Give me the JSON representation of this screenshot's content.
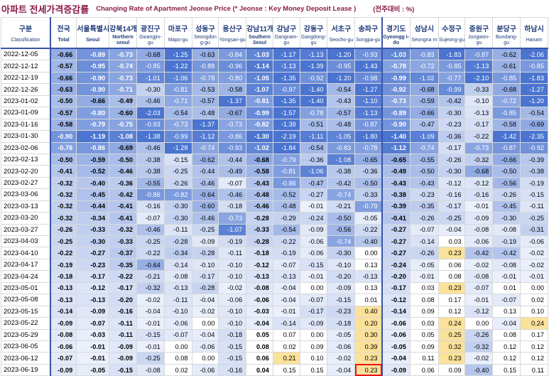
{
  "title_kr": "아파트 전세가격증감률",
  "title_en": "Changing Rate of Apartment Jeonse Price (* Jeonse : Key Money Deposit Lease )",
  "unit": "(전주대비 : %)",
  "columns": [
    {
      "kr": "구분",
      "en": "Classification"
    },
    {
      "kr": "전국",
      "en": "Total"
    },
    {
      "kr": "서울특별시",
      "en": "Seoul"
    },
    {
      "kr": "강북14개",
      "en": "Northern seoul"
    },
    {
      "kr": "광진구",
      "en": "Gwangjin-gu"
    },
    {
      "kr": "마포구",
      "en": "Mapo-gu"
    },
    {
      "kr": "성동구",
      "en": "Seongdon g-gu"
    },
    {
      "kr": "용산구",
      "en": "Yongsan-gu"
    },
    {
      "kr": "강남11개",
      "en": "Southern Seoul"
    },
    {
      "kr": "강남구",
      "en": "Gangnam-gu"
    },
    {
      "kr": "강동구",
      "en": "Gangdong-gu"
    },
    {
      "kr": "서초구",
      "en": "Seocho-gu"
    },
    {
      "kr": "송파구",
      "en": "Songpa-gu"
    },
    {
      "kr": "경기도",
      "en": "Gyeongg i-do"
    },
    {
      "kr": "성남시",
      "en": "Seongna m"
    },
    {
      "kr": "수정구",
      "en": "Sujeong-gu"
    },
    {
      "kr": "중원구",
      "en": "Jungwon-gu"
    },
    {
      "kr": "분당구",
      "en": "Bundang-gu"
    },
    {
      "kr": "하남시",
      "en": "Hanam"
    }
  ],
  "rows": [
    [
      "2022-12-05",
      "-0.66",
      "-0.89",
      "-0.73",
      "-0.68",
      "-1.25",
      "-0.63",
      "-0.84",
      "-1.03",
      "-1.17",
      "-1.13",
      "-1.20",
      "-0.93",
      "-1.03",
      "-0.83",
      "-1.83",
      "-0.87",
      "-0.62",
      "-2.06"
    ],
    [
      "2022-12-12",
      "-0.57",
      "-0.95",
      "-0.74",
      "-0.85",
      "-1.22",
      "-0.88",
      "-0.96",
      "-1.14",
      "-1.13",
      "-1.39",
      "-0.95",
      "-1.43",
      "-0.78",
      "-0.72",
      "-0.85",
      "-1.13",
      "-0.61",
      "-0.85"
    ],
    [
      "2022-12-19",
      "-0.66",
      "-0.90",
      "-0.73",
      "-1.01",
      "-1.06",
      "-0.78",
      "-0.80",
      "-1.05",
      "-1.35",
      "-0.92",
      "-1.20",
      "-0.98",
      "-0.99",
      "-1.02",
      "-0.77",
      "-2.10",
      "-0.85",
      "-1.83"
    ],
    [
      "2022-12-26",
      "-0.63",
      "-0.90",
      "-0.71",
      "-0.30",
      "-0.81",
      "-0.53",
      "-0.58",
      "-1.07",
      "-0.97",
      "-1.40",
      "-0.54",
      "-1.27",
      "-0.92",
      "-0.68",
      "-0.99",
      "-0.33",
      "-0.68",
      "-1.27"
    ],
    [
      "2023-01-02",
      "-0.50",
      "-0.66",
      "-0.49",
      "-0.46",
      "-0.71",
      "-0.57",
      "-1.37",
      "-0.81",
      "-1.35",
      "-1.40",
      "-0.43",
      "-1.10",
      "-0.73",
      "-0.59",
      "-0.42",
      "-0.10",
      "-0.72",
      "-1.20"
    ],
    [
      "2023-01-09",
      "-0.57",
      "-0.80",
      "-0.60",
      "-2.03",
      "-0.54",
      "-0.48",
      "-0.67",
      "-0.99",
      "-1.57",
      "-0.78",
      "-0.57",
      "-1.13",
      "-0.89",
      "-0.66",
      "-0.30",
      "-0.13",
      "-0.85",
      "-0.54"
    ],
    [
      "2023-01-16",
      "-0.58",
      "-0.79",
      "-0.75",
      "-0.93",
      "-0.73",
      "-1.37",
      "-0.73",
      "-0.82",
      "-1.39",
      "-0.51",
      "-0.48",
      "-0.87",
      "-0.90",
      "-0.47",
      "-0.23",
      "-0.17",
      "-0.58",
      "-0.69"
    ],
    [
      "2023-01-30",
      "-0.90",
      "-1.19",
      "-1.08",
      "-1.38",
      "-0.99",
      "-1.12",
      "-0.86",
      "-1.30",
      "-2.19",
      "-1.11",
      "-1.05",
      "-1.80",
      "-1.40",
      "-1.09",
      "-0.36",
      "-0.22",
      "-1.42",
      "-2.35"
    ],
    [
      "2023-02-06",
      "-0.76",
      "-0.86",
      "-0.69",
      "-0.46",
      "-1.28",
      "-0.74",
      "-0.93",
      "-1.02",
      "-1.84",
      "-0.54",
      "-0.83",
      "-0.78",
      "-1.12",
      "-0.74",
      "-0.17",
      "-0.73",
      "-0.87",
      "-0.92"
    ],
    [
      "2023-02-13",
      "-0.50",
      "-0.59",
      "-0.50",
      "-0.38",
      "-0.15",
      "-0.62",
      "-0.44",
      "-0.68",
      "-0.79",
      "-0.36",
      "-1.08",
      "-0.65",
      "-0.65",
      "-0.55",
      "-0.26",
      "-0.32",
      "-0.66",
      "-0.39"
    ],
    [
      "2023-02-20",
      "-0.41",
      "-0.52",
      "-0.46",
      "-0.38",
      "-0.25",
      "-0.44",
      "-0.49",
      "-0.58",
      "-0.81",
      "-1.06",
      "-0.38",
      "-0.36",
      "-0.49",
      "-0.50",
      "-0.30",
      "-0.68",
      "-0.50",
      "-0.38"
    ],
    [
      "2023-02-27",
      "-0.32",
      "-0.40",
      "-0.36",
      "-0.55",
      "-0.26",
      "-0.46",
      "-0.07",
      "-0.43",
      "-0.86",
      "-0.47",
      "-0.42",
      "-0.50",
      "-0.43",
      "-0.43",
      "-0.12",
      "-0.12",
      "-0.56",
      "-0.19"
    ],
    [
      "2023-03-06",
      "-0.32",
      "-0.45",
      "-0.42",
      "-0.86",
      "-0.82",
      "-0.64",
      "-0.46",
      "-0.48",
      "-0.52",
      "-0.27",
      "-0.74",
      "-0.33",
      "-0.38",
      "-0.23",
      "-0.16",
      "-0.16",
      "-0.26",
      "-0.15"
    ],
    [
      "2023-03-13",
      "-0.32",
      "-0.44",
      "-0.41",
      "-0.16",
      "-0.30",
      "-0.60",
      "-0.18",
      "-0.46",
      "-0.48",
      "-0.01",
      "-0.21",
      "-0.79",
      "-0.39",
      "-0.35",
      "-0.17",
      "-0.01",
      "-0.45",
      "-0.11"
    ],
    [
      "2023-03-20",
      "-0.32",
      "-0.34",
      "-0.41",
      "-0.07",
      "-0.30",
      "-0.46",
      "-0.73",
      "-0.28",
      "-0.29",
      "-0.24",
      "-0.50",
      "-0.05",
      "-0.41",
      "-0.26",
      "-0.25",
      "-0.09",
      "-0.30",
      "-0.25"
    ],
    [
      "2023-03-27",
      "-0.26",
      "-0.33",
      "-0.32",
      "-0.46",
      "-0.11",
      "-0.25",
      "-1.07",
      "-0.33",
      "-0.54",
      "-0.09",
      "-0.56",
      "-0.22",
      "-0.27",
      "-0.07",
      "-0.04",
      "-0.08",
      "-0.08",
      "-0.31"
    ],
    [
      "2023-04-03",
      "-0.25",
      "-0.30",
      "-0.33",
      "-0.25",
      "-0.28",
      "-0.09",
      "-0.19",
      "-0.28",
      "-0.22",
      "-0.06",
      "-0.74",
      "-0.40",
      "-0.27",
      "-0.14",
      "0.03",
      "-0.06",
      "-0.19",
      "-0.06"
    ],
    [
      "2023-04-10",
      "-0.22",
      "-0.27",
      "-0.37",
      "-0.22",
      "-0.34",
      "-0.28",
      "-0.11",
      "-0.18",
      "-0.19",
      "-0.06",
      "-0.30",
      "0.00",
      "-0.27",
      "-0.26",
      "0.23",
      "-0.42",
      "-0.42",
      "-0.02"
    ],
    [
      "2023-04-17",
      "-0.19",
      "-0.23",
      "-0.35",
      "-0.64",
      "-0.14",
      "-0.10",
      "-0.10",
      "-0.12",
      "-0.07",
      "-0.15",
      "-0.10",
      "0.13",
      "-0.24",
      "-0.05",
      "0.06",
      "-0.02",
      "-0.08",
      "-0.02"
    ],
    [
      "2023-04-24",
      "-0.18",
      "-0.17",
      "-0.22",
      "-0.21",
      "-0.08",
      "-0.17",
      "-0.10",
      "-0.13",
      "-0.13",
      "-0.01",
      "-0.20",
      "-0.13",
      "-0.20",
      "-0.01",
      "0.08",
      "-0.08",
      "-0.01",
      "-0.01"
    ],
    [
      "2023-05-01",
      "-0.13",
      "-0.12",
      "-0.17",
      "-0.32",
      "-0.13",
      "-0.28",
      "-0.02",
      "-0.08",
      "-0.04",
      "0.00",
      "-0.09",
      "0.13",
      "-0.17",
      "0.03",
      "0.23",
      "-0.07",
      "0.01",
      "0.00"
    ],
    [
      "2023-05-08",
      "-0.13",
      "-0.13",
      "-0.20",
      "-0.02",
      "-0.11",
      "-0.04",
      "-0.06",
      "-0.06",
      "-0.04",
      "-0.07",
      "-0.15",
      "0.01",
      "-0.12",
      "0.08",
      "0.17",
      "-0.01",
      "-0.07",
      "0.02"
    ],
    [
      "2023-05-15",
      "-0.14",
      "-0.09",
      "-0.16",
      "-0.04",
      "-0.10",
      "-0.02",
      "-0.10",
      "-0.03",
      "-0.01",
      "-0.17",
      "-0.23",
      "0.40",
      "-0.14",
      "0.09",
      "0.12",
      "-0.12",
      "0.13",
      "0.10"
    ],
    [
      "2023-05-22",
      "-0.09",
      "-0.07",
      "-0.11",
      "-0.01",
      "-0.06",
      "0.00",
      "-0.10",
      "-0.04",
      "-0.14",
      "-0.09",
      "-0.18",
      "0.20",
      "-0.06",
      "0.03",
      "0.24",
      "0.00",
      "-0.04",
      "0.24"
    ],
    [
      "2023-05-29",
      "-0.08",
      "-0.03",
      "-0.11",
      "-0.15",
      "-0.07",
      "-0.04",
      "-0.18",
      "0.05",
      "0.07",
      "0.00",
      "-0.05",
      "0.30",
      "-0.06",
      "0.05",
      "0.25",
      "-0.26",
      "0.08",
      "0.17"
    ],
    [
      "2023-06-05",
      "-0.06",
      "-0.01",
      "-0.09",
      "-0.01",
      "0.00",
      "-0.06",
      "-0.15",
      "0.08",
      "0.02",
      "0.09",
      "-0.06",
      "0.39",
      "-0.05",
      "0.09",
      "0.32",
      "-0.32",
      "0.12",
      "0.12"
    ],
    [
      "2023-06-12",
      "-0.07",
      "-0.01",
      "-0.09",
      "-0.25",
      "0.08",
      "0.00",
      "-0.15",
      "0.06",
      "0.21",
      "0.10",
      "-0.02",
      "0.23",
      "-0.04",
      "0.11",
      "0.23",
      "-0.02",
      "0.12",
      "0.12"
    ],
    [
      "2023-06-19",
      "-0.09",
      "-0.05",
      "-0.15",
      "-0.08",
      "0.02",
      "-0.06",
      "-0.16",
      "0.04",
      "0.15",
      "0.15",
      "-0.04",
      "0.23",
      "-0.09",
      "0.06",
      "0.09",
      "-0.40",
      "0.15",
      "0.11"
    ]
  ],
  "colors": {
    "negative_dark": "#4a74d0",
    "positive_fill": "#fbe29a",
    "header_text": "#1f3a7a",
    "highlight_border": "#e8111b"
  },
  "highlighted_cell": {
    "row": 27,
    "col": 12
  }
}
